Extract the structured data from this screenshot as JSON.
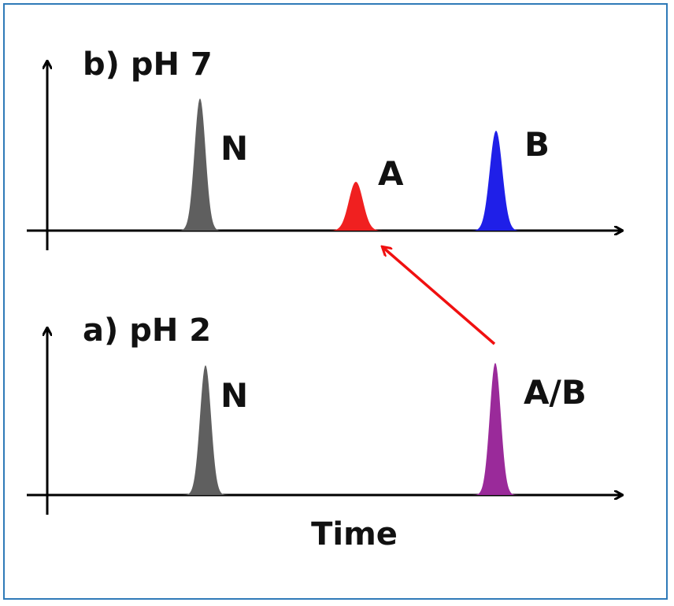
{
  "panels": [
    {
      "id": "ph7",
      "title": "b) pH 7",
      "peaks": [
        {
          "label": "N",
          "color": "#5f5f5f"
        },
        {
          "label": "A",
          "color": "#f02020"
        },
        {
          "label": "B",
          "color": "#1f1fe8"
        }
      ]
    },
    {
      "id": "ph2",
      "title": "a) pH 2",
      "peaks": [
        {
          "label": "N",
          "color": "#5f5f5f"
        },
        {
          "label": "A/B",
          "color": "#9a2a9a"
        }
      ]
    }
  ],
  "x_axis_label": "Time",
  "colors": {
    "frame": "#2f7ab8",
    "axis": "#000000",
    "arrow": "#f01010"
  }
}
